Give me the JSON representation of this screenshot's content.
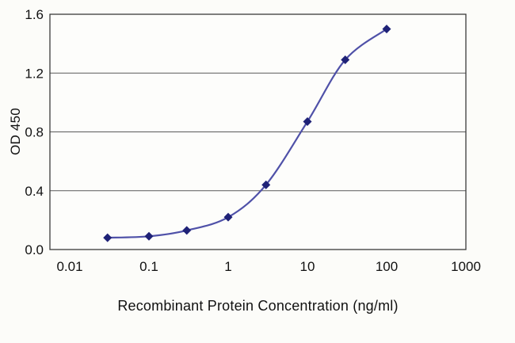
{
  "chart_data": {
    "type": "line",
    "title": "",
    "xlabel": "Recombinant Protein Concentration (ng/ml)",
    "ylabel": "OD 450",
    "x_scale": "log",
    "x": [
      0.03,
      0.1,
      0.3,
      1,
      3,
      10,
      30,
      100
    ],
    "y": [
      0.08,
      0.09,
      0.13,
      0.22,
      0.44,
      0.87,
      1.29,
      1.5
    ],
    "x_ticks": [
      "0.01",
      "0.1",
      "1",
      "10",
      "100",
      "1000"
    ],
    "x_tick_values": [
      0.01,
      0.1,
      1,
      10,
      100,
      1000
    ],
    "y_ticks": [
      "0.0",
      "0.4",
      "0.8",
      "1.2",
      "1.6"
    ],
    "y_tick_values": [
      0.0,
      0.4,
      0.8,
      1.2,
      1.6
    ],
    "xlim_log": [
      -2.25,
      3
    ],
    "ylim": [
      0,
      1.6
    ],
    "grid": "horizontal",
    "legend": "none",
    "line_color": "#4f51a8",
    "marker": "diamond",
    "marker_color": "#1f2277",
    "grid_color": "#5a5a5a",
    "border_color": "#3a3a3a",
    "plot_background": "#fdfdfb",
    "figure_background": "#fcfcf9"
  }
}
